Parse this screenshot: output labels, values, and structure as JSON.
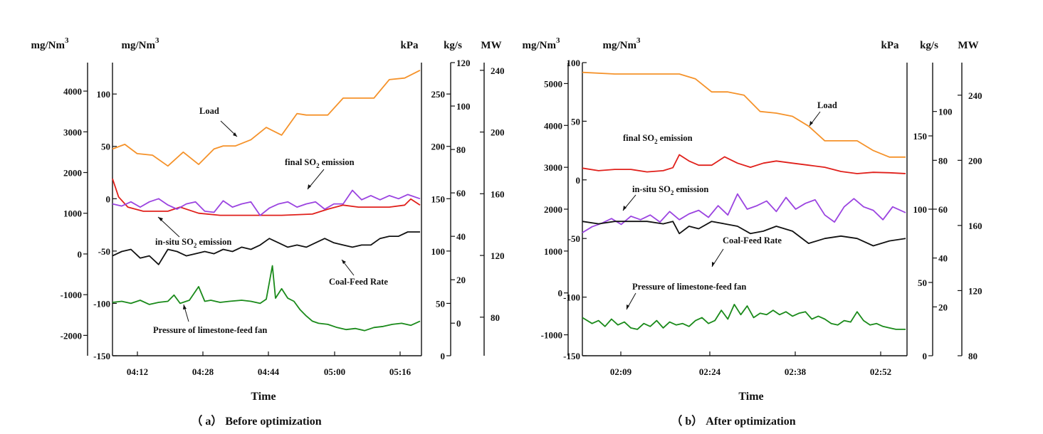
{
  "chart_data": [
    {
      "type": "line",
      "caption": "（ a） Before optimization",
      "xlabel": "Time",
      "xticks": [
        "04:12",
        "04:28",
        "04:44",
        "05:00",
        "05:16"
      ],
      "xrange": [
        "04:05",
        "05:23"
      ],
      "axes": [
        {
          "id": "a1",
          "unit_main": "mg/Nm",
          "unit_sup": "3",
          "range": [
            -2500,
            4700
          ],
          "ticks": [
            -2000,
            -1000,
            0,
            1000,
            2000,
            3000,
            4000
          ]
        },
        {
          "id": "a2",
          "unit_main": "mg/Nm",
          "unit_sup": "3",
          "range": [
            -150,
            130
          ],
          "ticks": [
            -150,
            -100,
            -50,
            0,
            50,
            100
          ]
        },
        {
          "id": "a3",
          "unit_main": "kPa",
          "unit_sup": "",
          "range": [
            0,
            280
          ],
          "ticks": [
            0,
            50,
            100,
            150,
            200,
            250
          ]
        },
        {
          "id": "a4",
          "unit_main": "kg/s",
          "unit_sup": "",
          "range": [
            -15,
            120
          ],
          "ticks": [
            0,
            20,
            40,
            60,
            80,
            100,
            120
          ]
        },
        {
          "id": "a5",
          "unit_main": "MW",
          "unit_sup": "",
          "range": [
            55,
            245
          ],
          "ticks": [
            80,
            120,
            160,
            200,
            240
          ]
        }
      ],
      "series": [
        {
          "key": "load",
          "color": "#f5922a",
          "axis": "a5",
          "t": [
            0,
            4,
            8,
            13,
            18,
            23,
            28,
            33,
            36,
            40,
            45,
            50,
            55,
            60,
            63,
            66,
            70,
            75,
            80,
            85,
            90,
            95,
            100
          ],
          "v": [
            189,
            192,
            186,
            185,
            178,
            187,
            179,
            189,
            191,
            191,
            195,
            203,
            198,
            212,
            211,
            211,
            211,
            222,
            222,
            222,
            234,
            235,
            240
          ]
        },
        {
          "key": "final_so2",
          "color": "#e0201b",
          "axis": "a1",
          "t": [
            0,
            2,
            5,
            10,
            18,
            22,
            28,
            35,
            45,
            55,
            65,
            70,
            75,
            80,
            85,
            90,
            95,
            97,
            100
          ],
          "v": [
            1850,
            1400,
            1150,
            1050,
            1050,
            1150,
            1000,
            950,
            950,
            950,
            980,
            1100,
            1200,
            1150,
            1150,
            1150,
            1200,
            1350,
            1200
          ]
        },
        {
          "key": "insitu_so2",
          "color": "#9b44e0",
          "axis": "a2",
          "t": [
            0,
            3,
            6,
            9,
            12,
            15,
            18,
            21,
            24,
            27,
            30,
            33,
            36,
            39,
            42,
            45,
            48,
            51,
            54,
            57,
            60,
            63,
            66,
            69,
            72,
            75,
            78,
            81,
            84,
            87,
            90,
            93,
            96,
            100
          ],
          "v": [
            -5,
            -7,
            -3,
            -8,
            -3,
            0,
            -6,
            -10,
            -5,
            -3,
            -12,
            -13,
            -2,
            -8,
            -5,
            -3,
            -16,
            -9,
            -5,
            -3,
            -8,
            -5,
            -3,
            -10,
            -5,
            -5,
            8,
            -1,
            3,
            -1,
            3,
            0,
            4,
            0
          ]
        },
        {
          "key": "coal_feed",
          "color": "#111111",
          "axis": "a4",
          "t": [
            0,
            3,
            6,
            9,
            12,
            15,
            18,
            21,
            24,
            27,
            30,
            33,
            36,
            39,
            42,
            45,
            48,
            51,
            54,
            57,
            60,
            63,
            66,
            69,
            72,
            75,
            78,
            81,
            84,
            87,
            90,
            93,
            96,
            100
          ],
          "v": [
            31,
            33,
            34,
            30,
            31,
            27,
            34,
            33,
            31,
            32,
            33,
            32,
            34,
            33,
            35,
            34,
            36,
            39,
            37,
            35,
            36,
            35,
            37,
            39,
            37,
            36,
            35,
            36,
            36,
            39,
            40,
            40,
            42,
            42
          ]
        },
        {
          "key": "limestone_fan",
          "color": "#1a8a1a",
          "axis": "a3",
          "t": [
            0,
            3,
            6,
            9,
            12,
            15,
            18,
            20,
            22,
            25,
            28,
            30,
            32,
            35,
            38,
            42,
            45,
            48,
            50,
            52,
            53,
            55,
            57,
            59,
            61,
            63,
            65,
            67,
            70,
            73,
            76,
            79,
            82,
            85,
            88,
            91,
            94,
            97,
            100
          ],
          "v": [
            51,
            52,
            50,
            53,
            49,
            51,
            52,
            58,
            50,
            53,
            66,
            52,
            53,
            51,
            52,
            53,
            52,
            50,
            54,
            86,
            55,
            64,
            55,
            52,
            44,
            38,
            33,
            31,
            30,
            27,
            25,
            26,
            24,
            27,
            28,
            30,
            31,
            29,
            33
          ]
        }
      ],
      "annotations": {
        "load": "Load",
        "final_pre": "final SO",
        "final_sub": "2",
        "final_post": " emission",
        "insitu_pre": "in-situ SO",
        "insitu_sub": "2",
        "insitu_post": " emission",
        "coal": "Coal-Feed Rate",
        "fan": "Pressure of limestone-feed fan"
      }
    },
    {
      "type": "line",
      "caption": "（ b） After optimization",
      "xlabel": "Time",
      "xticks": [
        "02:09",
        "02:24",
        "02:38",
        "02:52"
      ],
      "xrange": [
        "02:03",
        "02:54"
      ],
      "axes": [
        {
          "id": "b1",
          "unit_main": "mg/Nm",
          "unit_sup": "3",
          "range": [
            -1500,
            5500
          ],
          "ticks": [
            -1000,
            0,
            1000,
            2000,
            3000,
            4000,
            5000
          ]
        },
        {
          "id": "b2",
          "unit_main": "mg/Nm",
          "unit_sup": "3",
          "range": [
            -150,
            100
          ],
          "ticks": [
            -150,
            -100,
            -50,
            0,
            50,
            100
          ]
        },
        {
          "id": "b3",
          "unit_main": "kPa",
          "unit_sup": "",
          "range": [
            0,
            200
          ],
          "ticks": [
            0,
            50,
            100,
            150
          ]
        },
        {
          "id": "b4",
          "unit_main": "kg/s",
          "unit_sup": "",
          "range": [
            0,
            120
          ],
          "ticks": [
            20,
            40,
            60,
            80,
            100
          ]
        },
        {
          "id": "b5",
          "unit_main": "MW",
          "unit_sup": "",
          "range": [
            80,
            260
          ],
          "ticks": [
            80,
            120,
            160,
            200,
            240
          ]
        }
      ],
      "series": [
        {
          "key": "load",
          "color": "#f5922a",
          "axis": "b5",
          "t": [
            0,
            10,
            20,
            30,
            35,
            40,
            45,
            50,
            55,
            60,
            65,
            70,
            75,
            80,
            85,
            90,
            95,
            100
          ],
          "v": [
            254,
            253,
            253,
            253,
            250,
            242,
            242,
            240,
            230,
            229,
            227,
            221,
            212,
            212,
            212,
            206,
            202,
            202
          ]
        },
        {
          "key": "final_so2",
          "color": "#e0201b",
          "axis": "b1",
          "t": [
            0,
            5,
            10,
            15,
            20,
            25,
            28,
            30,
            33,
            36,
            40,
            44,
            48,
            52,
            56,
            60,
            65,
            70,
            75,
            80,
            85,
            90,
            95,
            100
          ],
          "v": [
            2980,
            2920,
            2950,
            2950,
            2890,
            2920,
            2990,
            3300,
            3150,
            3050,
            3050,
            3250,
            3100,
            3000,
            3100,
            3150,
            3100,
            3050,
            3000,
            2900,
            2850,
            2880,
            2870,
            2850
          ]
        },
        {
          "key": "insitu_so2",
          "color": "#9b44e0",
          "axis": "b2",
          "t": [
            0,
            3,
            6,
            9,
            12,
            15,
            18,
            21,
            24,
            27,
            30,
            33,
            36,
            39,
            42,
            45,
            48,
            51,
            54,
            57,
            60,
            63,
            66,
            69,
            72,
            75,
            78,
            81,
            84,
            87,
            90,
            93,
            96,
            100
          ],
          "v": [
            -45,
            -40,
            -37,
            -33,
            -38,
            -31,
            -34,
            -30,
            -36,
            -27,
            -34,
            -29,
            -26,
            -32,
            -22,
            -30,
            -12,
            -25,
            -22,
            -18,
            -27,
            -15,
            -25,
            -20,
            -17,
            -30,
            -36,
            -23,
            -16,
            -23,
            -26,
            -34,
            -23,
            -28
          ]
        },
        {
          "key": "coal_feed",
          "color": "#111111",
          "axis": "b4",
          "t": [
            0,
            5,
            10,
            15,
            20,
            25,
            28,
            30,
            33,
            36,
            40,
            44,
            48,
            52,
            56,
            60,
            65,
            70,
            75,
            80,
            85,
            90,
            95,
            100
          ],
          "v": [
            55,
            54,
            55,
            55,
            55,
            54,
            55,
            50,
            53,
            52,
            55,
            54,
            53,
            50,
            51,
            53,
            51,
            46,
            48,
            49,
            48,
            45,
            47,
            48
          ]
        },
        {
          "key": "limestone_fan",
          "color": "#1a8a1a",
          "axis": "b3",
          "t": [
            0,
            3,
            5,
            7,
            9,
            11,
            13,
            15,
            17,
            19,
            21,
            23,
            25,
            27,
            29,
            31,
            33,
            35,
            37,
            39,
            41,
            43,
            45,
            47,
            49,
            51,
            53,
            55,
            57,
            59,
            61,
            63,
            65,
            67,
            69,
            71,
            73,
            75,
            77,
            79,
            81,
            83,
            85,
            87,
            89,
            91,
            93,
            95,
            97,
            100
          ],
          "v": [
            26,
            22,
            24,
            20,
            25,
            21,
            23,
            19,
            18,
            22,
            20,
            24,
            19,
            23,
            21,
            22,
            20,
            24,
            26,
            22,
            24,
            31,
            25,
            35,
            28,
            34,
            26,
            29,
            28,
            31,
            28,
            30,
            27,
            29,
            30,
            25,
            27,
            25,
            22,
            21,
            24,
            23,
            30,
            24,
            21,
            22,
            20,
            19,
            18,
            18
          ]
        }
      ],
      "annotations": {
        "load": "Load",
        "final_pre": "final SO",
        "final_sub": "2",
        "final_post": " emission",
        "insitu_pre": "in-situ SO",
        "insitu_sub": "2",
        "insitu_post": " emission",
        "coal": "Coal-Feed Rate",
        "fan": "Pressure of limestone-feed fan"
      }
    }
  ]
}
